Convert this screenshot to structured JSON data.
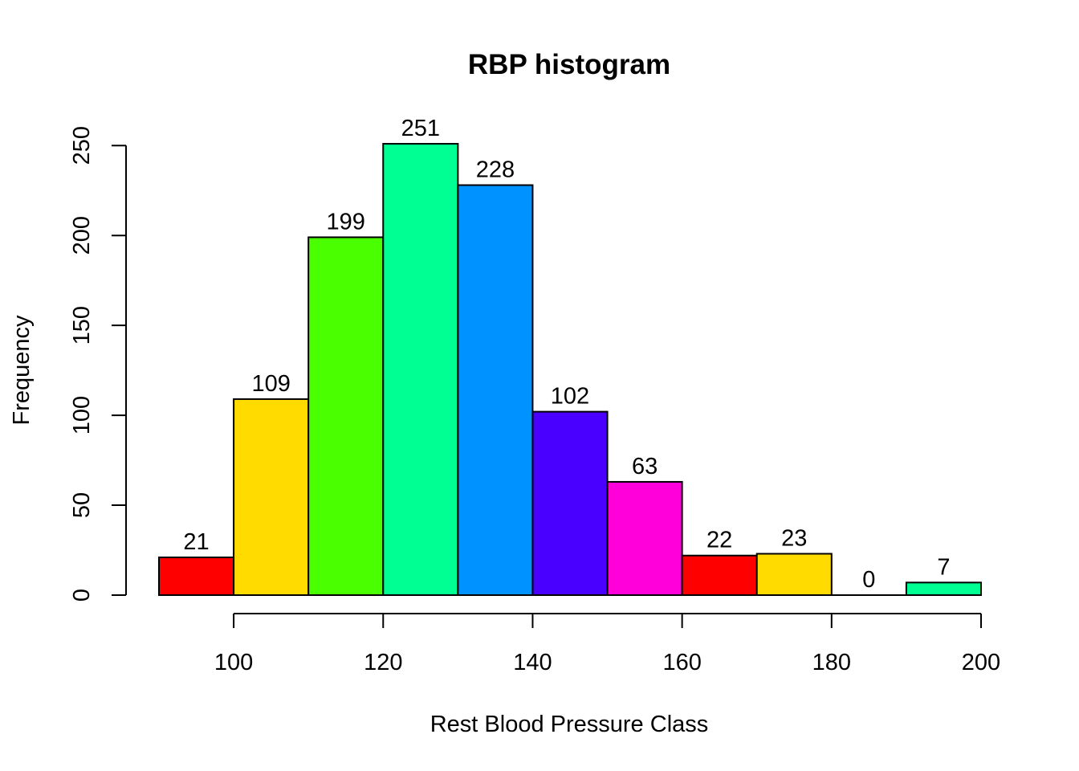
{
  "chart_data": {
    "type": "bar",
    "title": "RBP histogram",
    "xlabel": "Rest Blood Pressure Class",
    "ylabel": "Frequency",
    "bins": [
      {
        "from": 90,
        "to": 100,
        "value": 21,
        "label": "21",
        "color": "#FF0000"
      },
      {
        "from": 100,
        "to": 110,
        "value": 109,
        "label": "109",
        "color": "#FFDB00"
      },
      {
        "from": 110,
        "to": 120,
        "value": 199,
        "label": "199",
        "color": "#49FF00"
      },
      {
        "from": 120,
        "to": 130,
        "value": 251,
        "label": "251",
        "color": "#00FF92"
      },
      {
        "from": 130,
        "to": 140,
        "value": 228,
        "label": "228",
        "color": "#0092FF"
      },
      {
        "from": 140,
        "to": 150,
        "value": 102,
        "label": "102",
        "color": "#4900FF"
      },
      {
        "from": 150,
        "to": 160,
        "value": 63,
        "label": "63",
        "color": "#FF00DB"
      },
      {
        "from": 160,
        "to": 170,
        "value": 22,
        "label": "22",
        "color": "#FF0000"
      },
      {
        "from": 170,
        "to": 180,
        "value": 23,
        "label": "23",
        "color": "#FFDB00"
      },
      {
        "from": 180,
        "to": 190,
        "value": 0,
        "label": "0",
        "color": "#49FF00"
      },
      {
        "from": 190,
        "to": 200,
        "value": 7,
        "label": "7",
        "color": "#00FF92"
      }
    ],
    "x_ticks": [
      100,
      120,
      140,
      160,
      180,
      200
    ],
    "x_tick_labels": [
      "100",
      "120",
      "140",
      "160",
      "180",
      "200"
    ],
    "y_ticks": [
      0,
      50,
      100,
      150,
      200,
      250
    ],
    "y_tick_labels": [
      "0",
      "50",
      "100",
      "150",
      "200",
      "250"
    ],
    "xlim": [
      90,
      200
    ],
    "ylim": [
      0,
      251
    ],
    "grid": false,
    "legend": "none"
  }
}
